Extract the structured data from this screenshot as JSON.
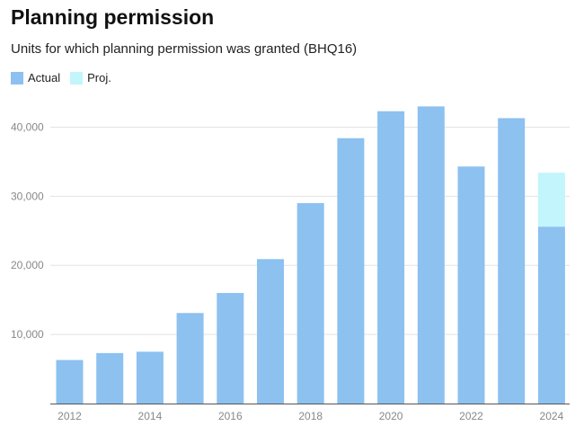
{
  "chart_data": {
    "type": "bar",
    "title": "Planning permission",
    "subtitle": "Units for which planning permission was granted (BHQ16)",
    "xlabel": "",
    "ylabel": "",
    "ylim": [
      0,
      45000
    ],
    "yticks": [
      10000,
      20000,
      30000,
      40000
    ],
    "ytick_labels": [
      "10,000",
      "20,000",
      "30,000",
      "40,000"
    ],
    "xtick_labels": [
      "2012",
      "2014",
      "2016",
      "2018",
      "2020",
      "2022",
      "2024"
    ],
    "grid": true,
    "legend": "top-left",
    "stacked": true,
    "categories": [
      "2012",
      "2013",
      "2014",
      "2015",
      "2016",
      "2017",
      "2018",
      "2019",
      "2020",
      "2021",
      "2022",
      "2023",
      "2024"
    ],
    "series": [
      {
        "name": "Actual",
        "color": "#8cc1f0",
        "values": [
          6300,
          7300,
          7500,
          13100,
          16000,
          20900,
          29000,
          38400,
          42300,
          43000,
          34300,
          41300,
          25600
        ]
      },
      {
        "name": "Proj.",
        "color": "#c2f5fc",
        "values": [
          0,
          0,
          0,
          0,
          0,
          0,
          0,
          0,
          0,
          0,
          0,
          0,
          7800
        ]
      }
    ]
  }
}
